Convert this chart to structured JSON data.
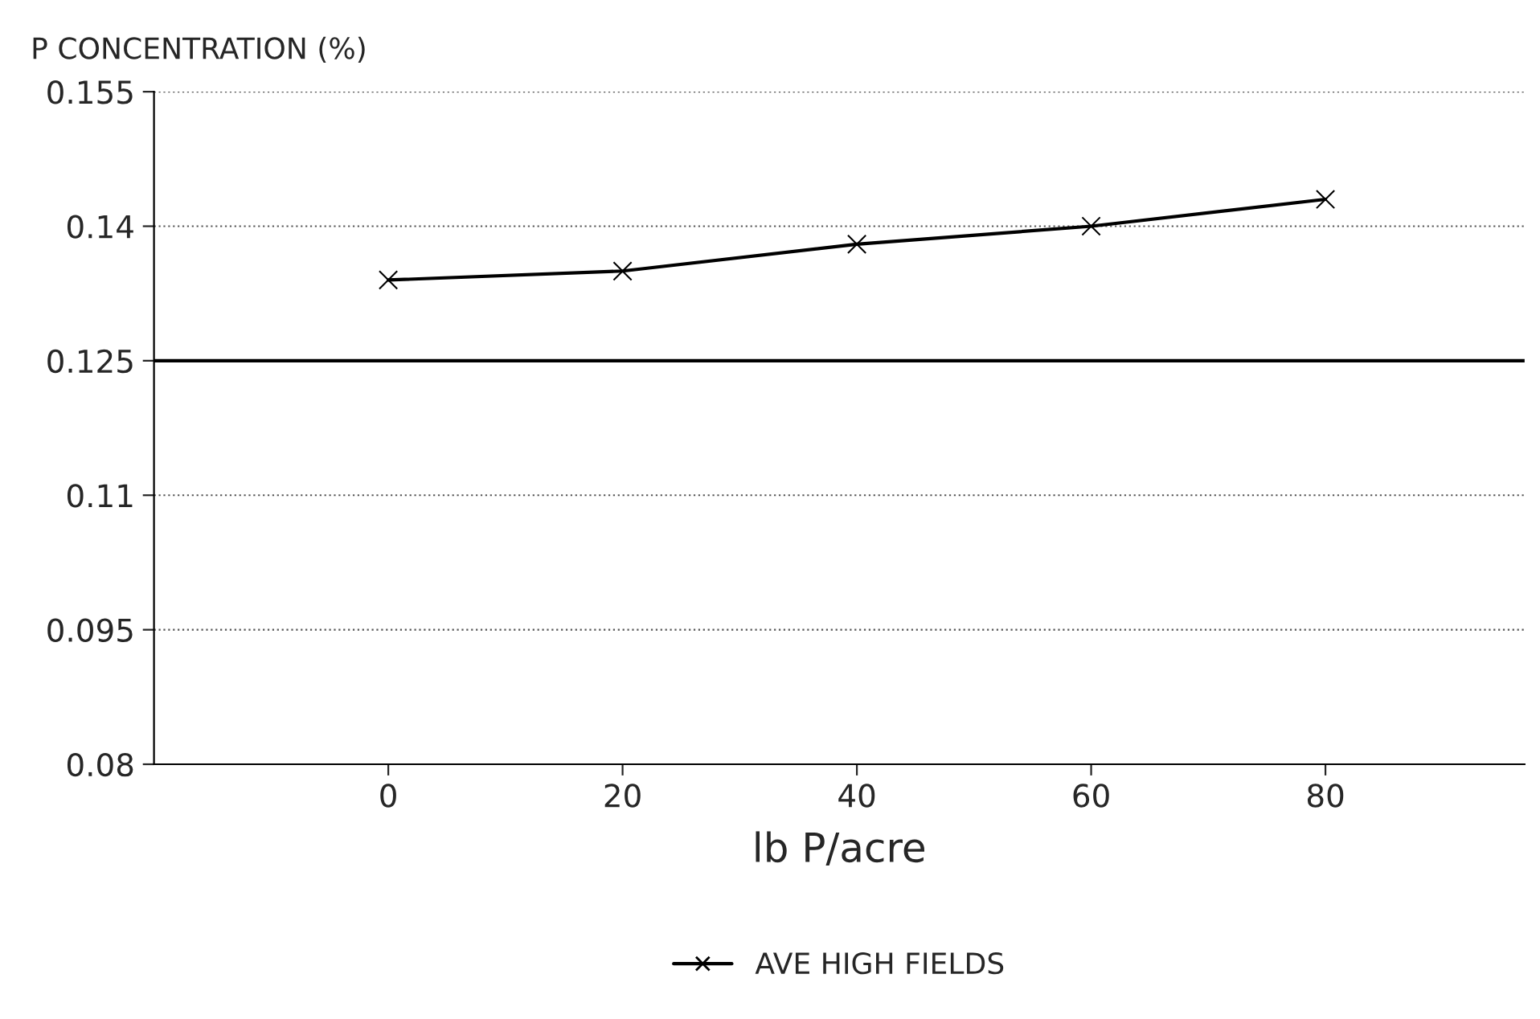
{
  "chart_data": {
    "type": "line",
    "ylabel": "P CONCENTRATION (%)",
    "xlabel": "lb P/acre",
    "x": [
      0,
      20,
      40,
      60,
      80
    ],
    "series": [
      {
        "name": "AVE HIGH FIELDS",
        "color": "#000000",
        "values": [
          0.134,
          0.135,
          0.138,
          0.14,
          0.143
        ]
      }
    ],
    "xlim": [
      -20,
      97
    ],
    "xticks": [
      0,
      20,
      40,
      60,
      80
    ],
    "ylim": [
      0.08,
      0.155
    ],
    "yticks": [
      {
        "value": 0.08,
        "label": "0.08"
      },
      {
        "value": 0.095,
        "label": "0.095"
      },
      {
        "value": 0.11,
        "label": "0.11"
      },
      {
        "value": 0.125,
        "label": "0.125"
      },
      {
        "value": 0.14,
        "label": "0.14"
      },
      {
        "value": 0.155,
        "label": "0.155"
      }
    ],
    "ref_lines": [
      {
        "axis": "y",
        "value": 0.125,
        "color": "#000000",
        "line_style": "solid"
      }
    ],
    "grid": "y",
    "legend": "bottom",
    "marker": "cross",
    "line_style": "solid"
  }
}
